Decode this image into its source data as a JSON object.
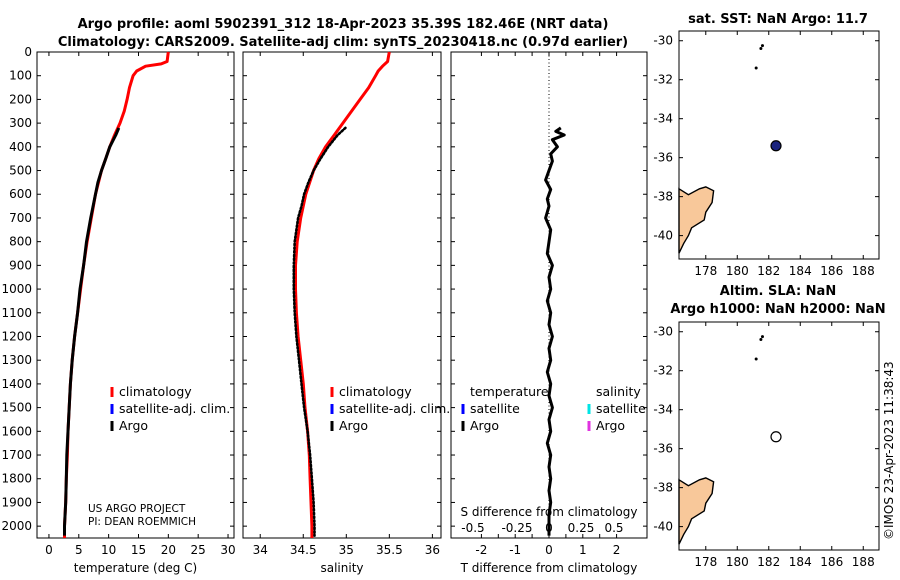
{
  "header": {
    "title_line1": "Argo profile: aoml 5902391_312 18-Apr-2023 35.39S 182.46E (NRT data)",
    "title_line2": "Climatology: CARS2009. Satellite-adj clim: synTS_20230418.nc (0.97d earlier)"
  },
  "timestamp": "©IMOS 23-Apr-2023 11:38:43",
  "project_text": {
    "line1": "US ARGO PROJECT",
    "line2": "PI: DEAN ROEMMICH"
  },
  "colors": {
    "climatology": "#ff0000",
    "satellite": "#0000ff",
    "argo": "#000000",
    "satellite_diff_s": "#00e5e5",
    "argo_diff_s": "#e033e0",
    "land": "#f8c89a",
    "marker_fill": "#1a237e"
  },
  "chart_data": [
    {
      "type": "line",
      "id": "temperature",
      "xlabel": "temperature (deg C)",
      "xlim": [
        -2,
        31
      ],
      "xticks": [
        0,
        5,
        10,
        15,
        20,
        25,
        30
      ],
      "ylim": [
        0,
        2050
      ],
      "yticks": [
        0,
        100,
        200,
        300,
        400,
        500,
        600,
        700,
        800,
        900,
        1000,
        1100,
        1200,
        1300,
        1400,
        1500,
        1600,
        1700,
        1800,
        1900,
        2000
      ],
      "legend": [
        "climatology",
        "satellite-adj. clim.",
        "Argo"
      ],
      "series": [
        {
          "role": "climatology",
          "depth": [
            0,
            40,
            50,
            60,
            80,
            100,
            150,
            200,
            250,
            300,
            350,
            400,
            450,
            500,
            600,
            700,
            800,
            900,
            1000,
            1100,
            1200,
            1300,
            1400,
            1500,
            1600,
            1700,
            1800,
            1900,
            2000,
            2050
          ],
          "values": [
            20.0,
            19.8,
            18.8,
            16.2,
            14.7,
            14.1,
            13.5,
            13.1,
            12.6,
            11.9,
            11.0,
            10.2,
            9.5,
            8.8,
            7.8,
            7.1,
            6.4,
            5.8,
            5.3,
            4.8,
            4.3,
            3.9,
            3.6,
            3.4,
            3.2,
            3.1,
            2.9,
            2.8,
            2.6,
            2.6
          ]
        },
        {
          "role": "argo",
          "depth": [
            320,
            350,
            400,
            450,
            500,
            550,
            600,
            700,
            800,
            900,
            1000,
            1100,
            1200,
            1300,
            1400,
            1500,
            1600,
            1700,
            1800,
            1900,
            2000,
            2040
          ],
          "values": [
            11.7,
            11.2,
            10.2,
            9.5,
            8.8,
            8.2,
            7.8,
            7.0,
            6.3,
            5.8,
            5.2,
            4.8,
            4.3,
            3.9,
            3.6,
            3.4,
            3.2,
            3.0,
            2.9,
            2.8,
            2.6,
            2.6
          ]
        }
      ]
    },
    {
      "type": "line",
      "id": "salinity",
      "xlabel": "salinity",
      "xlim": [
        33.8,
        36.1
      ],
      "xticks": [
        34,
        34.5,
        35,
        35.5,
        36
      ],
      "ylim": [
        0,
        2050
      ],
      "legend": [
        "climatology",
        "satellite-adj. clim.",
        "Argo"
      ],
      "series": [
        {
          "role": "climatology",
          "depth": [
            0,
            40,
            60,
            80,
            100,
            150,
            200,
            250,
            300,
            350,
            400,
            450,
            500,
            600,
            700,
            800,
            900,
            1000,
            1100,
            1200,
            1300,
            1400,
            1500,
            1600,
            1700,
            1800,
            1900,
            2000,
            2050
          ],
          "values": [
            35.5,
            35.48,
            35.42,
            35.37,
            35.34,
            35.26,
            35.16,
            35.06,
            34.96,
            34.86,
            34.76,
            34.68,
            34.62,
            34.53,
            34.47,
            34.43,
            34.41,
            34.41,
            34.42,
            34.44,
            34.47,
            34.5,
            34.52,
            34.55,
            34.57,
            34.58,
            34.59,
            34.6,
            34.6
          ]
        },
        {
          "role": "argo",
          "depth": [
            320,
            350,
            400,
            450,
            500,
            550,
            600,
            650,
            700,
            800,
            900,
            1000,
            1100,
            1200,
            1300,
            1400,
            1500,
            1600,
            1700,
            1800,
            1900,
            2000,
            2040
          ],
          "values": [
            34.99,
            34.9,
            34.79,
            34.7,
            34.62,
            34.56,
            34.51,
            34.48,
            34.44,
            34.4,
            34.39,
            34.39,
            34.4,
            34.42,
            34.45,
            34.48,
            34.51,
            34.55,
            34.58,
            34.6,
            34.62,
            34.63,
            34.63
          ]
        }
      ]
    },
    {
      "type": "line",
      "id": "difference",
      "xlabel": "T difference from climatology",
      "xlim": [
        -2.9,
        2.9
      ],
      "xticks": [
        -2,
        -1.5,
        -1,
        -0.5,
        0,
        0.5,
        1,
        1.5,
        2
      ],
      "xticklabels": [
        "-2",
        "",
        "-1",
        "",
        "0",
        "",
        "1",
        "",
        "2"
      ],
      "secondary_label": "S difference from climatology",
      "secondary_ticks": [
        "-0.5",
        "-0.25",
        "0",
        "0.25",
        "0.5"
      ],
      "ylim": [
        0,
        2050
      ],
      "legend": {
        "left_title": "temperature",
        "right_title": "salinity",
        "left": [
          "satellite",
          "Argo"
        ],
        "right": [
          "satellite",
          "Argo"
        ]
      },
      "series": [
        {
          "role": "argo",
          "depth": [
            320,
            335,
            350,
            370,
            400,
            430,
            460,
            500,
            540,
            580,
            620,
            650,
            700,
            750,
            800,
            850,
            900,
            950,
            1000,
            1050,
            1100,
            1150,
            1200,
            1250,
            1300,
            1350,
            1400,
            1450,
            1500,
            1550,
            1600,
            1650,
            1700,
            1750,
            1800,
            1850,
            1900,
            1950,
            2000,
            2040
          ],
          "values": [
            0.35,
            0.2,
            0.45,
            0.1,
            0.25,
            0.05,
            0.1,
            0.0,
            -0.1,
            0.05,
            -0.05,
            0.0,
            -0.1,
            0.05,
            0.0,
            -0.05,
            0.1,
            0.0,
            0.05,
            -0.05,
            0.05,
            0.0,
            0.1,
            0.0,
            0.05,
            -0.05,
            0.05,
            0.0,
            0.1,
            0.0,
            0.05,
            -0.05,
            0.05,
            0.0,
            0.05,
            0.0,
            0.05,
            0.0,
            0.0,
            0.0
          ]
        }
      ]
    },
    {
      "type": "scatter",
      "id": "map_sst",
      "title": "sat. SST: NaN Argo: 11.7",
      "xlim": [
        176.3,
        189
      ],
      "xticks": [
        178,
        180,
        182,
        184,
        186,
        188
      ],
      "ylim": [
        -41.2,
        -29.5
      ],
      "yticks": [
        -30,
        -32,
        -34,
        -36,
        -38,
        -40
      ],
      "points": [
        {
          "lon": 182.46,
          "lat": -35.39,
          "style": "filled"
        }
      ]
    },
    {
      "type": "scatter",
      "id": "map_sla",
      "title_line1": "Altim. SLA: NaN",
      "title_line2": "Argo h1000: NaN h2000: NaN",
      "xlim": [
        176.3,
        189
      ],
      "xticks": [
        178,
        180,
        182,
        184,
        186,
        188
      ],
      "ylim": [
        -41.2,
        -29.5
      ],
      "yticks": [
        -30,
        -32,
        -34,
        -36,
        -38,
        -40
      ],
      "points": [
        {
          "lon": 182.46,
          "lat": -35.39,
          "style": "open"
        }
      ]
    }
  ]
}
